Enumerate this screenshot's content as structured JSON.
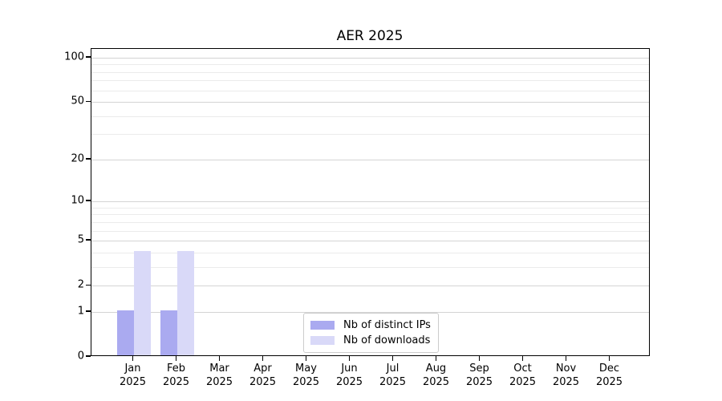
{
  "chart_data": {
    "type": "bar",
    "title": "AER 2025",
    "categories": [
      "Jan",
      "Feb",
      "Mar",
      "Apr",
      "May",
      "Jun",
      "Jul",
      "Aug",
      "Sep",
      "Oct",
      "Nov",
      "Dec"
    ],
    "year": "2025",
    "series": [
      {
        "name": "Nb of distinct IPs",
        "color": "#aaaaf0",
        "values": [
          1,
          1,
          0,
          0,
          0,
          0,
          0,
          0,
          0,
          0,
          0,
          0
        ]
      },
      {
        "name": "Nb of downloads",
        "color": "#d9d9f8",
        "values": [
          4,
          4,
          0,
          0,
          0,
          0,
          0,
          0,
          0,
          0,
          0,
          0
        ]
      }
    ],
    "y_scale": "log10(1+v)",
    "y_major_ticks": [
      0,
      1,
      2,
      5,
      10,
      20,
      50,
      100
    ],
    "y_minor_ticks": [
      3,
      4,
      6,
      7,
      8,
      9,
      30,
      40,
      60,
      70,
      80,
      90
    ],
    "ylim": [
      0,
      115
    ],
    "xlabel": "",
    "ylabel": "",
    "grid": "horizontal",
    "legend_position": "lower center"
  },
  "colors": {
    "major_grid": "#d4d4d4",
    "minor_grid": "#ebebeb",
    "spine": "#000000",
    "text": "#000000",
    "legend_border": "#cccccc"
  }
}
